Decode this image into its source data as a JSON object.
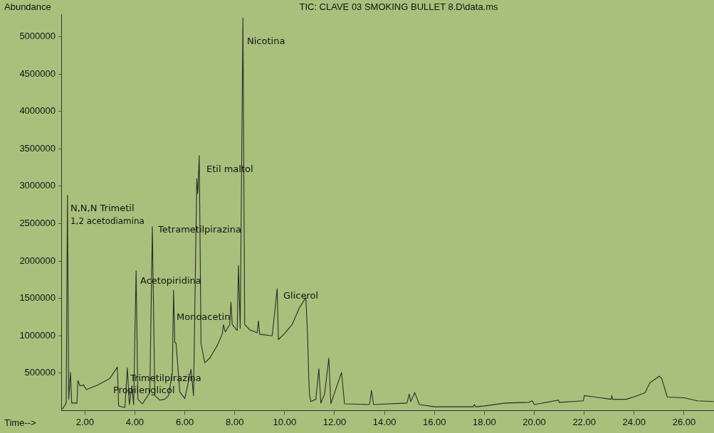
{
  "chart_data": {
    "type": "line",
    "title": "TIC: CLAVE 03 SMOKING BULLET 8.D\\data.ms",
    "xlabel": "Time-->",
    "ylabel": "Abundance",
    "x": [
      1.1,
      1.25,
      1.3,
      1.35,
      1.42,
      1.47,
      1.6,
      1.68,
      1.72,
      1.8,
      1.95,
      2.05,
      2.5,
      3.0,
      3.3,
      3.35,
      3.6,
      3.7,
      3.78,
      3.88,
      3.95,
      4.05,
      4.12,
      4.3,
      4.6,
      4.7,
      4.8,
      5.0,
      5.2,
      5.35,
      5.5,
      5.55,
      5.6,
      5.65,
      5.8,
      6.0,
      6.25,
      6.35,
      6.48,
      6.52,
      6.58,
      6.65,
      6.8,
      7.0,
      7.3,
      7.5,
      7.55,
      7.62,
      7.8,
      7.85,
      7.9,
      8.1,
      8.15,
      8.22,
      8.33,
      8.4,
      8.6,
      8.9,
      8.95,
      9.0,
      9.5,
      9.7,
      9.75,
      10.0,
      10.3,
      10.6,
      10.85,
      10.92,
      10.97,
      11.0,
      11.05,
      11.25,
      11.37,
      11.45,
      11.6,
      11.77,
      11.85,
      12.28,
      12.4,
      13.4,
      13.48,
      13.56,
      14.9,
      14.99,
      15.05,
      15.21,
      15.4,
      16.0,
      17.55,
      17.6,
      17.65,
      17.98,
      18.84,
      19.78,
      19.92,
      20.0,
      20.97,
      21.0,
      21.97,
      22.0,
      22.45,
      23.08,
      23.11,
      23.14,
      23.68,
      24.05,
      24.44,
      24.63,
      25.01,
      25.1,
      25.33,
      26.0,
      26.53,
      27.18
    ],
    "series": [
      {
        "color": "#2b2b2b",
        "values": [
          20000,
          100000,
          2880000,
          150000,
          510000,
          100000,
          100000,
          100000,
          400000,
          330000,
          340000,
          280000,
          340000,
          430000,
          580000,
          60000,
          40000,
          570000,
          80000,
          330000,
          80000,
          1870000,
          150000,
          90000,
          240000,
          2460000,
          200000,
          140000,
          150000,
          200000,
          500000,
          1610000,
          910000,
          900000,
          250000,
          160000,
          550000,
          200000,
          3100000,
          2900000,
          3410000,
          900000,
          640000,
          700000,
          870000,
          1020000,
          1150000,
          1050000,
          1150000,
          1450000,
          1150000,
          1070000,
          1940000,
          1100000,
          5250000,
          1150000,
          1080000,
          1040000,
          1200000,
          1020000,
          1000000,
          1630000,
          950000,
          1030000,
          1150000,
          1380000,
          1510000,
          1000000,
          400000,
          200000,
          120000,
          150000,
          560000,
          100000,
          220000,
          700000,
          90000,
          510000,
          90000,
          80000,
          270000,
          80000,
          100000,
          220000,
          120000,
          240000,
          80000,
          50000,
          50000,
          80000,
          50000,
          60000,
          100000,
          110000,
          130000,
          80000,
          140000,
          110000,
          130000,
          200000,
          180000,
          150000,
          200000,
          150000,
          150000,
          190000,
          240000,
          370000,
          460000,
          430000,
          180000,
          170000,
          130000,
          120000
        ]
      }
    ],
    "xlim": [
      1.05,
      27.2
    ],
    "ylim": [
      0,
      5300000
    ],
    "xticks": [
      {
        "value": 2,
        "label": "2.00"
      },
      {
        "value": 4,
        "label": "4.00"
      },
      {
        "value": 6,
        "label": "6.00"
      },
      {
        "value": 8,
        "label": "8.00"
      },
      {
        "value": 10,
        "label": "10.00"
      },
      {
        "value": 12,
        "label": "12.00"
      },
      {
        "value": 14,
        "label": "14.00"
      },
      {
        "value": 16,
        "label": "16.00"
      },
      {
        "value": 18,
        "label": "18.00"
      },
      {
        "value": 20,
        "label": "20.00"
      },
      {
        "value": 22,
        "label": "22.00"
      },
      {
        "value": 24,
        "label": "24.00"
      },
      {
        "value": 26,
        "label": "26.00"
      }
    ],
    "yticks": [
      500000,
      1000000,
      1500000,
      2000000,
      2500000,
      3000000,
      3500000,
      4000000,
      4500000,
      5000000
    ],
    "annotations": [
      "Nicotina",
      "Etil maltol",
      "N,N,N Trimetil\n1,2 acetodiamina",
      "Tetrametilpirazina",
      "Acetopiridina",
      "Monoacetin",
      "Glicerol",
      "Trimetilpirazina",
      "Propilenglicol"
    ]
  }
}
